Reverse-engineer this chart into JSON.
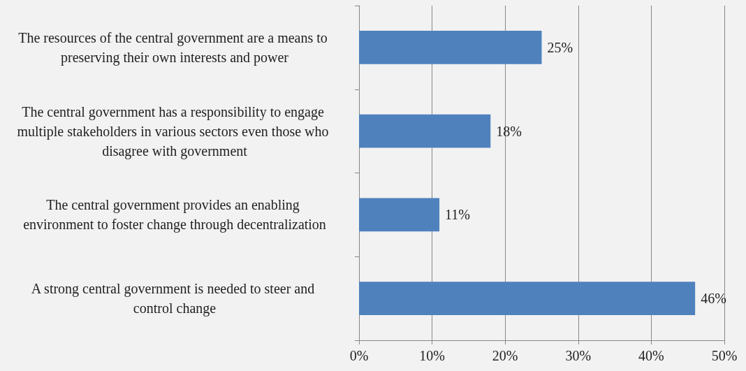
{
  "chart_data": {
    "type": "bar",
    "orientation": "horizontal",
    "categories": [
      "The resources of the central government are a means to preserving their own interests and power",
      "The central government has a responsibility to engage multiple stakeholders in various sectors even those who disagree with government",
      "The central government provides an enabling environment to foster change through decentralization",
      "A strong central government is needed to steer and control change"
    ],
    "values": [
      25,
      18,
      11,
      46
    ],
    "value_labels": [
      "25%",
      "18%",
      "11%",
      "46%"
    ],
    "color": "#4f81bd",
    "xlim": [
      0,
      50
    ],
    "xticks": [
      {
        "value": 0,
        "label": "0%"
      },
      {
        "value": 10,
        "label": "10%"
      },
      {
        "value": 20,
        "label": "20%"
      },
      {
        "value": 30,
        "label": "30%"
      },
      {
        "value": 40,
        "label": "40%"
      },
      {
        "value": 50,
        "label": "50%"
      }
    ],
    "grid": "x"
  }
}
